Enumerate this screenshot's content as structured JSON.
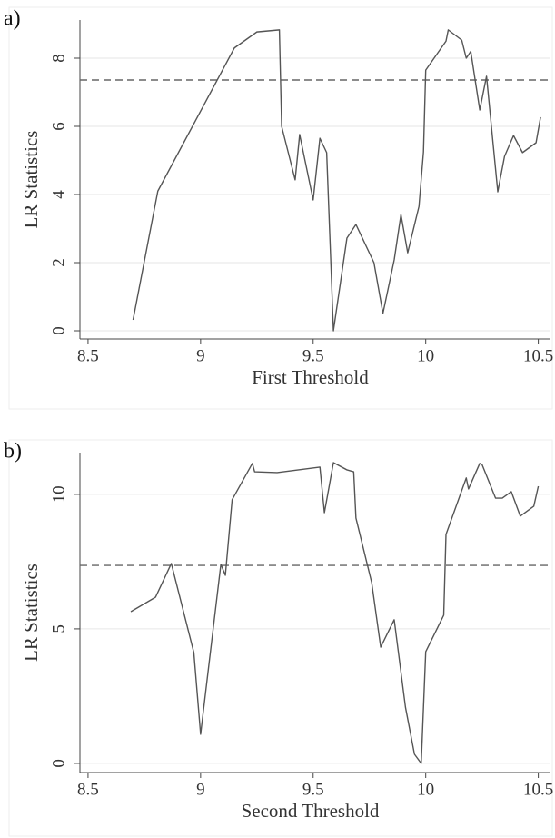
{
  "chart_data": [
    {
      "type": "line",
      "panel_label": "a)",
      "xlabel": "First Threshold",
      "ylabel": "LR Statistics",
      "x": [
        8.7,
        8.81,
        9.15,
        9.25,
        9.35,
        9.36,
        9.42,
        9.44,
        9.5,
        9.53,
        9.56,
        9.59,
        9.65,
        9.69,
        9.77,
        9.81,
        9.86,
        9.89,
        9.92,
        9.97,
        9.99,
        10.0,
        10.09,
        10.1,
        10.16,
        10.18,
        10.2,
        10.24,
        10.27,
        10.32,
        10.35,
        10.39,
        10.43,
        10.49,
        10.51
      ],
      "series": [
        {
          "color": "#555555",
          "values": [
            0.32,
            4.1,
            8.3,
            8.77,
            8.83,
            6.0,
            4.43,
            5.76,
            3.84,
            5.65,
            5.23,
            0,
            2.72,
            3.12,
            2.0,
            0.51,
            2.08,
            3.41,
            2.29,
            3.65,
            5.25,
            7.65,
            8.5,
            8.83,
            8.53,
            8.0,
            8.2,
            6.48,
            7.47,
            4.08,
            5.12,
            5.73,
            5.23,
            5.52,
            6.27
          ]
        }
      ],
      "hline": 7.36,
      "xlim": [
        8.464,
        10.55
      ],
      "ylim": [
        -0.24,
        9.12
      ],
      "xticks": [
        8.5,
        9,
        9.5,
        10,
        10.5
      ],
      "yticks": [
        0,
        2,
        4,
        6,
        8
      ],
      "grid": true
    },
    {
      "type": "line",
      "panel_label": "b)",
      "xlabel": "Second Threshold",
      "ylabel": "LR Statistics",
      "x": [
        8.69,
        8.8,
        8.87,
        8.97,
        9.0,
        9.09,
        9.11,
        9.14,
        9.23,
        9.24,
        9.34,
        9.53,
        9.55,
        9.59,
        9.65,
        9.68,
        9.69,
        9.76,
        9.8,
        9.86,
        9.91,
        9.95,
        9.98,
        10.0,
        10.08,
        10.09,
        10.18,
        10.19,
        10.24,
        10.25,
        10.31,
        10.34,
        10.38,
        10.42,
        10.48,
        10.5
      ],
      "series": [
        {
          "color": "#555555",
          "values": [
            5.64,
            6.18,
            7.43,
            4.12,
            1.08,
            7.4,
            6.99,
            9.8,
            11.15,
            10.84,
            10.81,
            11.01,
            9.32,
            11.18,
            10.91,
            10.84,
            9.12,
            6.72,
            4.32,
            5.34,
            2.09,
            0.34,
            0,
            4.15,
            5.51,
            8.51,
            10.61,
            10.2,
            11.15,
            11.11,
            9.86,
            9.86,
            10.1,
            9.19,
            9.56,
            10.3
          ]
        }
      ],
      "hline": 7.36,
      "xlim": [
        8.464,
        10.55
      ],
      "ylim": [
        -0.34,
        11.55
      ],
      "xticks": [
        8.5,
        9,
        9.5,
        10,
        10.5
      ],
      "yticks": [
        0,
        5,
        10
      ],
      "grid": true
    }
  ]
}
